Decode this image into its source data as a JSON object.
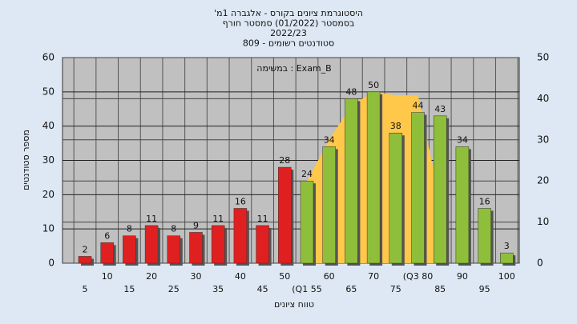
{
  "chart_data": {
    "type": "bar",
    "title": [
      "היסטוגרמת ציונים בקורס - אלגברה 1מ'",
      "בסמסטר  (01/2022)  סמסטר חורף",
      "2022/23",
      "סטודנטים רשומים - 809"
    ],
    "annotation": "Exam_B : במשימה",
    "x_label": "טווח ציונים",
    "y_label": "מספר סטודנטים",
    "categories": [
      "5",
      "10",
      "15",
      "20",
      "25",
      "30",
      "35",
      "40",
      "45",
      "50",
      "(Q1 55",
      "60",
      "65",
      "70",
      "75",
      "(Q3 80",
      "85",
      "90",
      "95",
      "100"
    ],
    "values": [
      2,
      6,
      8,
      11,
      8,
      9,
      11,
      16,
      11,
      28,
      24,
      34,
      48,
      50,
      38,
      44,
      43,
      34,
      16,
      3
    ],
    "colors": [
      "#e02020",
      "#e02020",
      "#e02020",
      "#e02020",
      "#e02020",
      "#e02020",
      "#e02020",
      "#e02020",
      "#e02020",
      "#e02020",
      "#8fbf3a",
      "#8fbf3a",
      "#8fbf3a",
      "#8fbf3a",
      "#8fbf3a",
      "#8fbf3a",
      "#8fbf3a",
      "#8fbf3a",
      "#8fbf3a",
      "#8fbf3a"
    ],
    "area": {
      "color": "#ffc84a",
      "values": [
        null,
        null,
        null,
        null,
        null,
        null,
        null,
        null,
        null,
        null,
        24,
        36,
        46,
        50,
        49,
        49,
        18,
        null,
        null,
        null
      ]
    },
    "ylim": [
      0,
      60
    ],
    "yticks": [
      0,
      10,
      20,
      30,
      40,
      50,
      60
    ],
    "y2lim": [
      0,
      50
    ],
    "y2ticks": [
      0,
      10,
      20,
      30,
      40,
      50
    ],
    "grid": true
  }
}
